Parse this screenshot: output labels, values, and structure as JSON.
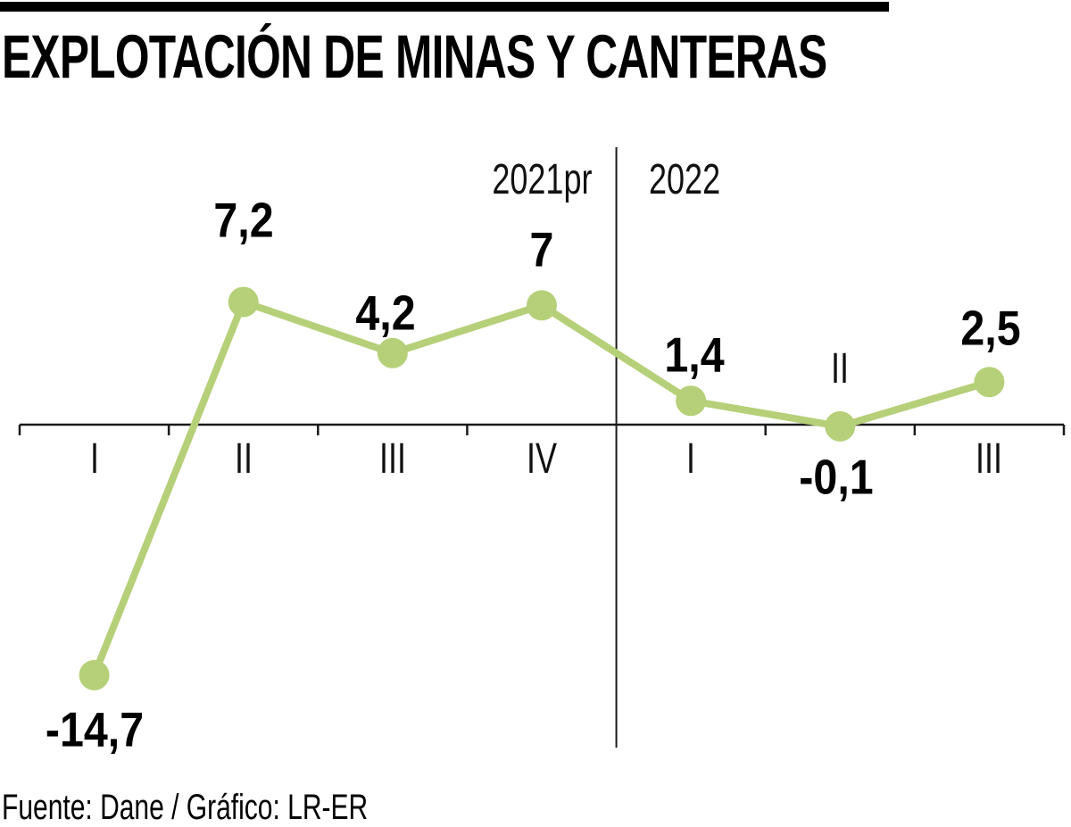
{
  "page": {
    "title": "EXPLOTACIÓN DE MINAS Y CANTERAS",
    "source_credit": "Fuente: Dane / Gráfico: LR-ER"
  },
  "colors": {
    "accent_green": "#b5d078",
    "axis_black": "#1a1a1a",
    "bar_black": "#000000",
    "text_black": "#000000"
  },
  "chart_data": {
    "type": "line",
    "title": "EXPLOTACIÓN DE MINAS Y CANTERAS",
    "x": [
      "I",
      "II",
      "III",
      "IV",
      "I",
      "II",
      "III"
    ],
    "values": [
      -14.7,
      7.2,
      4.2,
      7,
      1.4,
      -0.1,
      2.5
    ],
    "point_labels": [
      "-14,7",
      "7,2",
      "4,2",
      "7",
      "1,4",
      "-0,1",
      "2,5"
    ],
    "year_groups": [
      {
        "label": "2021pr",
        "quarters": [
          "I",
          "II",
          "III",
          "IV"
        ]
      },
      {
        "label": "2022",
        "quarters": [
          "I",
          "II",
          "III"
        ]
      }
    ],
    "divider_after_index": 3,
    "ylim": [
      -16.5,
      9.5
    ],
    "grid": false,
    "legend": false,
    "value_label_side": [
      "below",
      "above",
      "above",
      "above",
      "above",
      "below",
      "above"
    ],
    "quarter_label_side": [
      "below",
      "below",
      "below",
      "below",
      "below",
      "above",
      "below"
    ]
  }
}
